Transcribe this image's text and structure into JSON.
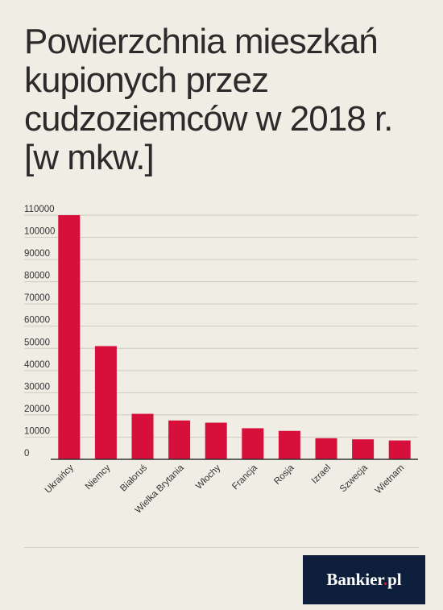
{
  "chart_data": {
    "type": "bar",
    "title": "Powierzchnia mieszkań kupionych przez cudzoziemców w 2018 r. [w mkw.]",
    "categories": [
      "Ukraińcy",
      "Niemcy",
      "Białoruś",
      "Wielka Brytania",
      "Włochy",
      "Francja",
      "Rosja",
      "Izrael",
      "Szwecja",
      "Wietnam"
    ],
    "values": [
      110000,
      51000,
      20500,
      17500,
      16500,
      14000,
      12800,
      9500,
      9000,
      8500
    ],
    "ylim": [
      0,
      110000
    ],
    "yticks": [
      0,
      10000,
      20000,
      30000,
      40000,
      50000,
      60000,
      70000,
      80000,
      90000,
      100000,
      110000
    ],
    "xlabel": "",
    "ylabel": "",
    "bar_color": "#d6103a",
    "grid": true
  },
  "brand": {
    "name": "Bankier",
    "dot": ".",
    "suffix": "pl",
    "background": "#0e1f3c"
  }
}
